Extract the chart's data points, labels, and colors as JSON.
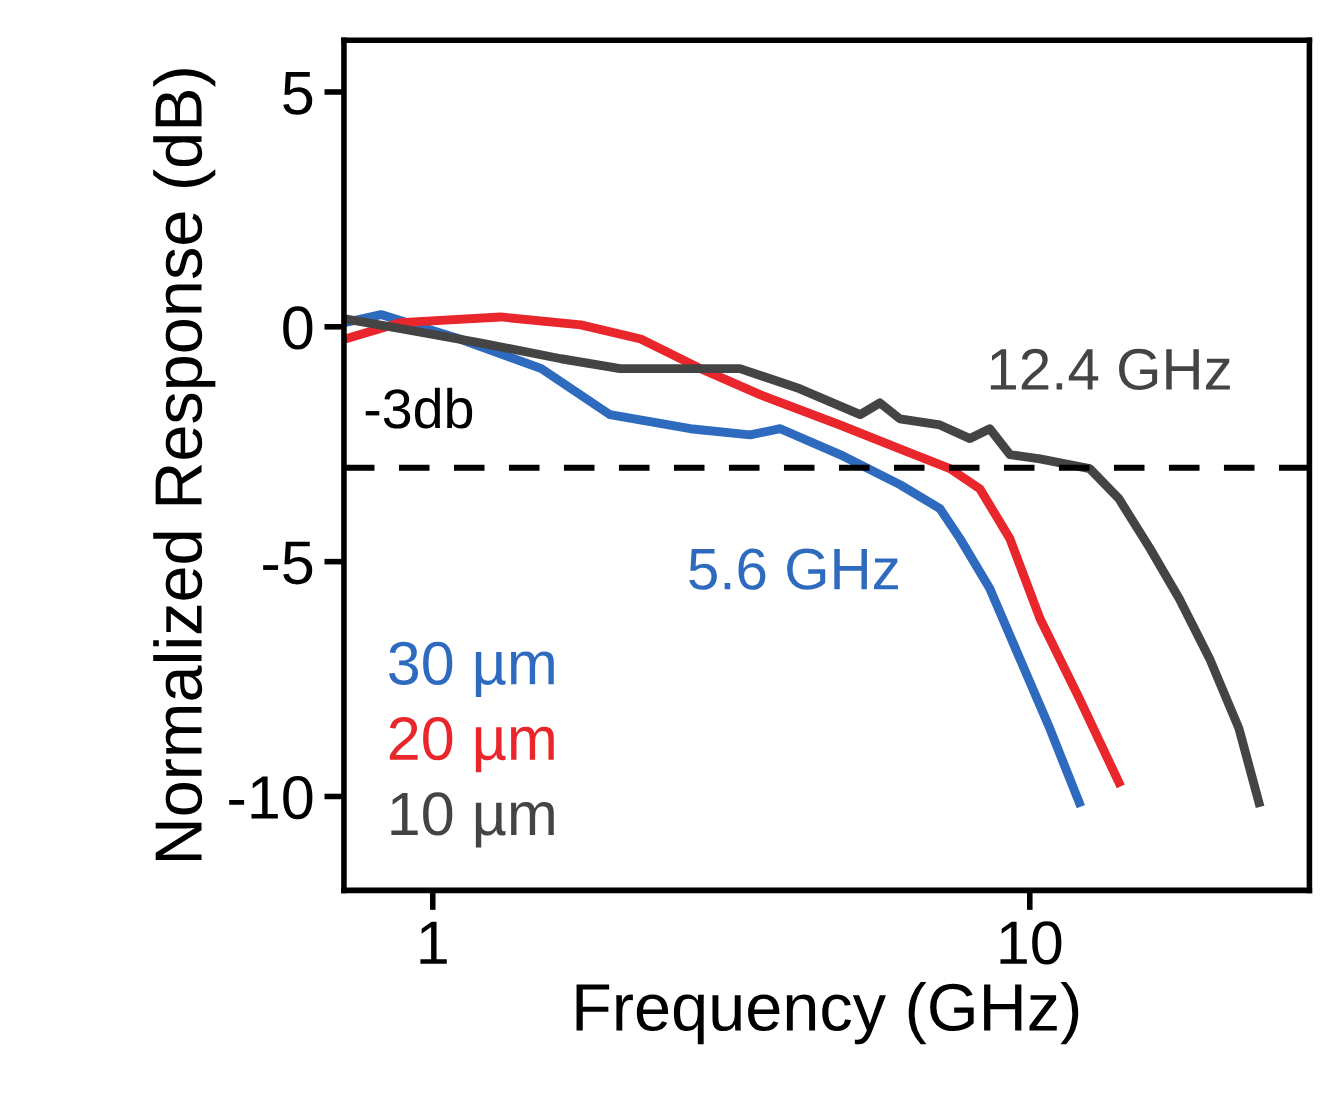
{
  "chart_data": {
    "type": "line",
    "xlabel": "Frequency (GHz)",
    "ylabel": "Normalized Response (dB)",
    "log": "x",
    "xlim": [
      0.71,
      29.4
    ],
    "xticks": [
      1,
      10
    ],
    "ylim": [
      -12,
      6.1
    ],
    "yticks": [
      -10,
      -5,
      0,
      5
    ],
    "grid": false,
    "legend": "bottom left",
    "marker": "none",
    "line_style": "solid",
    "series": [
      {
        "name": "30 µm",
        "color": "#2e6bbf",
        "x": [
          0.713,
          0.819,
          1.11,
          1.52,
          1.98,
          2.7,
          3.4,
          3.82,
          4.81,
          6.06,
          7.07,
          7.64,
          8.57,
          9.62,
          10.8,
          12.1
        ],
        "values": [
          0.09,
          0.26,
          -0.26,
          -0.89,
          -1.87,
          -2.17,
          -2.3,
          -2.17,
          -2.72,
          -3.36,
          -3.87,
          -4.51,
          -5.57,
          -7.06,
          -8.55,
          -10.13
        ]
      },
      {
        "name": "20 µm",
        "color": "#e8262b",
        "x": [
          0.713,
          0.884,
          1.3,
          1.77,
          2.23,
          2.81,
          3.54,
          4.81,
          6.06,
          7.35,
          8.25,
          9.26,
          10.4,
          12.1,
          14.1
        ],
        "values": [
          -0.26,
          0.09,
          0.21,
          0.04,
          -0.26,
          -0.89,
          -1.45,
          -2.09,
          -2.6,
          -3.02,
          -3.45,
          -4.51,
          -6.21,
          -7.91,
          -9.7
        ]
      },
      {
        "name": "10 µm",
        "color": "#444444",
        "x": [
          0.713,
          0.884,
          1.2,
          1.64,
          2.06,
          2.6,
          3.27,
          4.12,
          5.2,
          5.61,
          6.06,
          7.07,
          7.94,
          8.57,
          9.26,
          10.4,
          12.6,
          14.1,
          15.9,
          17.8,
          20.0,
          22.4,
          24.2
        ],
        "values": [
          0.17,
          -0.04,
          -0.34,
          -0.68,
          -0.89,
          -0.89,
          -0.89,
          -1.32,
          -1.87,
          -1.62,
          -1.96,
          -2.09,
          -2.38,
          -2.17,
          -2.72,
          -2.81,
          -3.02,
          -3.66,
          -4.72,
          -5.79,
          -7.06,
          -8.55,
          -10.13
        ]
      }
    ],
    "ref_lines": [
      {
        "axis": "y",
        "value": -3,
        "label": "-3db",
        "color": "#000000",
        "line_style": "dashed"
      }
    ],
    "annotations": [
      "5.6 GHz",
      "12.4 GHz"
    ]
  }
}
